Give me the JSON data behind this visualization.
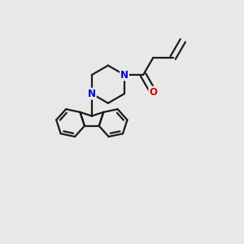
{
  "background_color": "#e8e8e8",
  "bond_color": "#1a1a1a",
  "n_color": "#0000cc",
  "o_color": "#cc0000",
  "lw": 1.6,
  "figsize": [
    3.0,
    3.0
  ],
  "dpi": 100,
  "xlim": [
    0.0,
    1.0
  ],
  "ylim": [
    0.0,
    1.0
  ]
}
